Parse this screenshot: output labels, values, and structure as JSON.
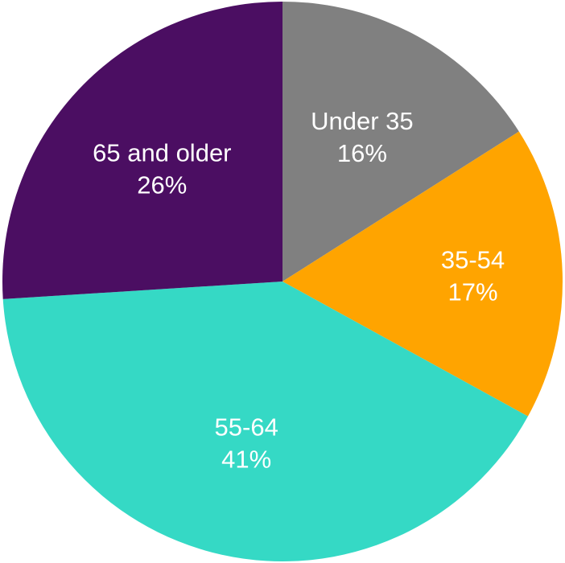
{
  "chart_data": {
    "type": "pie",
    "title": "",
    "start_angle_deg": 0,
    "direction": "clockwise",
    "slices": [
      {
        "label": "Under 35",
        "value": 16,
        "value_label": "16%",
        "color": "#808080"
      },
      {
        "label": "35-54",
        "value": 17,
        "value_label": "17%",
        "color": "#FFA400"
      },
      {
        "label": "55-64",
        "value": 41,
        "value_label": "41%",
        "color": "#35D9C5"
      },
      {
        "label": "65 and older",
        "value": 26,
        "value_label": "26%",
        "color": "#4B0E62"
      }
    ]
  }
}
